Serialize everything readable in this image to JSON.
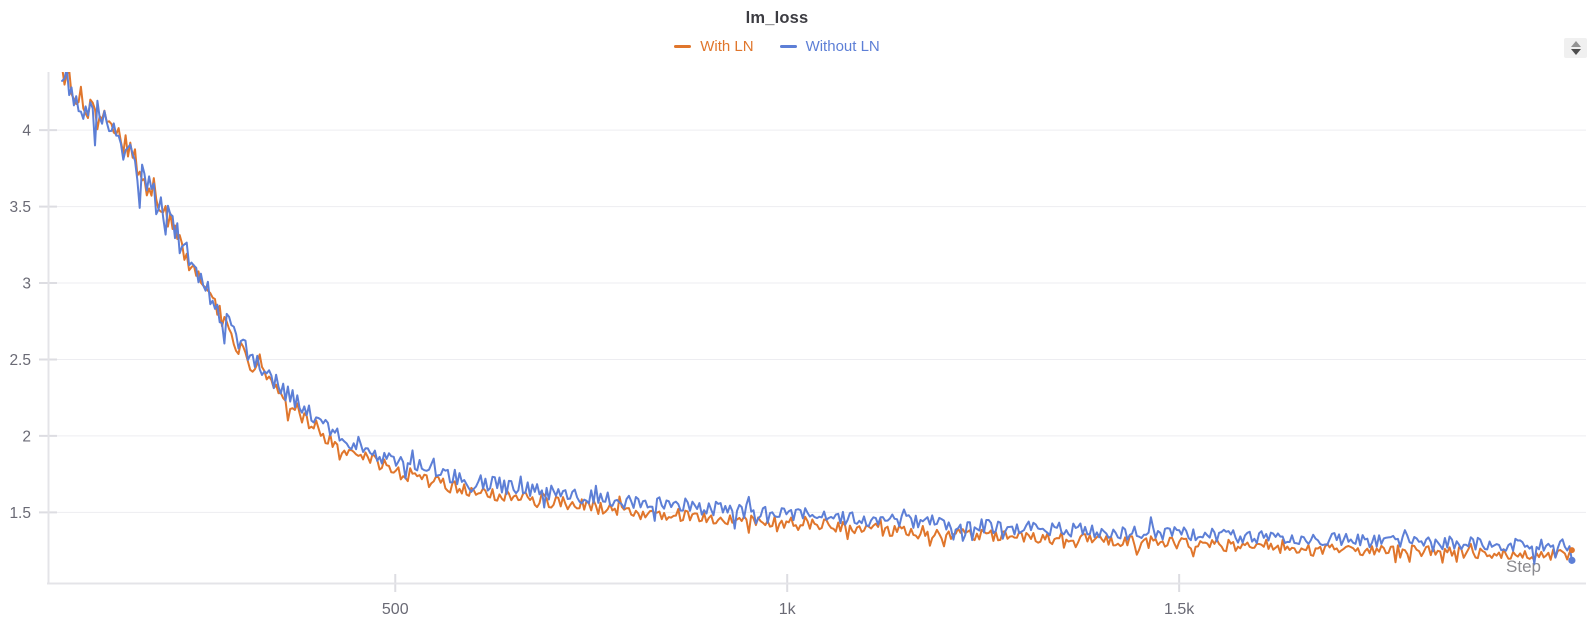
{
  "chart": {
    "title": "lm_loss",
    "legend": [
      {
        "label": "With LN",
        "color": "#e0762c"
      },
      {
        "label": "Without LN",
        "color": "#5d7fd6"
      }
    ]
  },
  "icons": {
    "panel_resize": "caret-up-down-icon"
  },
  "chart_data": {
    "type": "line",
    "title": "lm_loss",
    "xlabel": "Step",
    "ylabel": "",
    "xlim": [
      57,
      2019
    ],
    "ylim": [
      1.035,
      4.38
    ],
    "grid": "horizontal-only",
    "legend_position": "top-center",
    "x_ticks": [
      {
        "value": 500,
        "label": "500"
      },
      {
        "value": 1000,
        "label": "1k"
      },
      {
        "value": 1500,
        "label": "1.5k"
      }
    ],
    "y_ticks": [
      {
        "value": 1.5,
        "label": "1.5"
      },
      {
        "value": 2,
        "label": "2"
      },
      {
        "value": 2.5,
        "label": "2.5"
      },
      {
        "value": 3,
        "label": "3"
      },
      {
        "value": 3.5,
        "label": "3.5"
      },
      {
        "value": 4,
        "label": "4"
      }
    ],
    "style": {
      "grid_color": "#ededf1",
      "axis_color": "#e4e4e8",
      "tick_color": "#dddde2",
      "tick_label_color": "#6a6a75",
      "axis_title_color": "#8a8a8f",
      "line_width": 2
    },
    "series": [
      {
        "name": "With LN",
        "color": "#e0762c",
        "offset": -0.028,
        "noise_scale": 1.0,
        "down_spike_chance": 0.012,
        "seed": 20,
        "end_dot_r": 3.0
      },
      {
        "name": "Without LN",
        "color": "#5d7fd6",
        "offset": 0.032,
        "noise_scale": 1.12,
        "down_spike_chance": 0.03,
        "seed": 77,
        "end_dot_r": 3.6
      }
    ],
    "backbone_mean": [
      [
        75,
        4.36
      ],
      [
        90,
        4.26
      ],
      [
        105,
        4.16
      ],
      [
        120,
        4.1
      ],
      [
        135,
        4.02
      ],
      [
        150,
        3.92
      ],
      [
        165,
        3.82
      ],
      [
        180,
        3.68
      ],
      [
        195,
        3.56
      ],
      [
        210,
        3.42
      ],
      [
        225,
        3.26
      ],
      [
        240,
        3.11
      ],
      [
        255,
        2.97
      ],
      [
        270,
        2.85
      ],
      [
        285,
        2.72
      ],
      [
        300,
        2.6
      ],
      [
        320,
        2.47
      ],
      [
        340,
        2.36
      ],
      [
        360,
        2.26
      ],
      [
        380,
        2.16
      ],
      [
        400,
        2.07
      ],
      [
        420,
        2.0
      ],
      [
        440,
        1.94
      ],
      [
        460,
        1.89
      ],
      [
        480,
        1.845
      ],
      [
        500,
        1.805
      ],
      [
        530,
        1.76
      ],
      [
        560,
        1.715
      ],
      [
        590,
        1.68
      ],
      [
        620,
        1.655
      ],
      [
        650,
        1.63
      ],
      [
        690,
        1.6
      ],
      [
        730,
        1.575
      ],
      [
        770,
        1.555
      ],
      [
        820,
        1.53
      ],
      [
        870,
        1.51
      ],
      [
        920,
        1.49
      ],
      [
        970,
        1.47
      ],
      [
        1020,
        1.45
      ],
      [
        1080,
        1.43
      ],
      [
        1140,
        1.41
      ],
      [
        1200,
        1.395
      ],
      [
        1270,
        1.375
      ],
      [
        1340,
        1.36
      ],
      [
        1410,
        1.345
      ],
      [
        1480,
        1.33
      ],
      [
        1550,
        1.315
      ],
      [
        1620,
        1.3
      ],
      [
        1690,
        1.29
      ],
      [
        1760,
        1.28
      ],
      [
        1830,
        1.27
      ],
      [
        1900,
        1.26
      ],
      [
        1950,
        1.255
      ],
      [
        2001,
        1.25
      ]
    ],
    "sampling": {
      "start": 75,
      "end": 2001,
      "interval": 3
    },
    "noise": {
      "base": 0.013,
      "proportional": 0.02,
      "spike_chance": 0.05,
      "spike_mult": 2.3
    },
    "offset_ramp": {
      "from_step": 140,
      "to_step": 420
    }
  }
}
